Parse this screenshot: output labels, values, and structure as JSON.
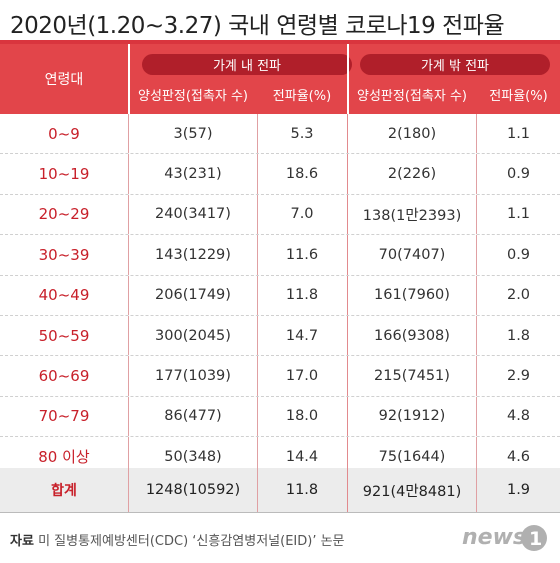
{
  "title": "2020년(1.20~3.27) 국내 연령별 코로나19 전파율",
  "header": {
    "age_label": "연령대",
    "group_in": "가계 내 전파",
    "group_out": "가계 밖 전파",
    "sub_positive": "양성판정(접촉자 수)",
    "sub_rate": "전파율(%)"
  },
  "rows": [
    {
      "age": "0~9",
      "in_pos": "3(57)",
      "in_rate": "5.3",
      "out_pos": "2(180)",
      "out_rate": "1.1"
    },
    {
      "age": "10~19",
      "in_pos": "43(231)",
      "in_rate": "18.6",
      "out_pos": "2(226)",
      "out_rate": "0.9"
    },
    {
      "age": "20~29",
      "in_pos": "240(3417)",
      "in_rate": "7.0",
      "out_pos": "138(1만2393)",
      "out_rate": "1.1"
    },
    {
      "age": "30~39",
      "in_pos": "143(1229)",
      "in_rate": "11.6",
      "out_pos": "70(7407)",
      "out_rate": "0.9"
    },
    {
      "age": "40~49",
      "in_pos": "206(1749)",
      "in_rate": "11.8",
      "out_pos": "161(7960)",
      "out_rate": "2.0"
    },
    {
      "age": "50~59",
      "in_pos": "300(2045)",
      "in_rate": "14.7",
      "out_pos": "166(9308)",
      "out_rate": "1.8"
    },
    {
      "age": "60~69",
      "in_pos": "177(1039)",
      "in_rate": "17.0",
      "out_pos": "215(7451)",
      "out_rate": "2.9"
    },
    {
      "age": "70~79",
      "in_pos": "86(477)",
      "in_rate": "18.0",
      "out_pos": "92(1912)",
      "out_rate": "4.8"
    },
    {
      "age": "80 이상",
      "in_pos": "50(348)",
      "in_rate": "14.4",
      "out_pos": "75(1644)",
      "out_rate": "4.6"
    }
  ],
  "total": {
    "age": "합계",
    "in_pos": "1248(10592)",
    "in_rate": "11.8",
    "out_pos": "921(4만8481)",
    "out_rate": "1.9"
  },
  "source": {
    "label": "자료",
    "text": "미 질병통제예방센터(CDC) ‘신흥감염병저널(EID)’ 논문"
  },
  "logo": {
    "text": "news1",
    "accent_color": "#d9353e"
  },
  "colors": {
    "accent": "#e2454a",
    "accent_dark": "#b01f2a",
    "age_text": "#c8202a"
  }
}
